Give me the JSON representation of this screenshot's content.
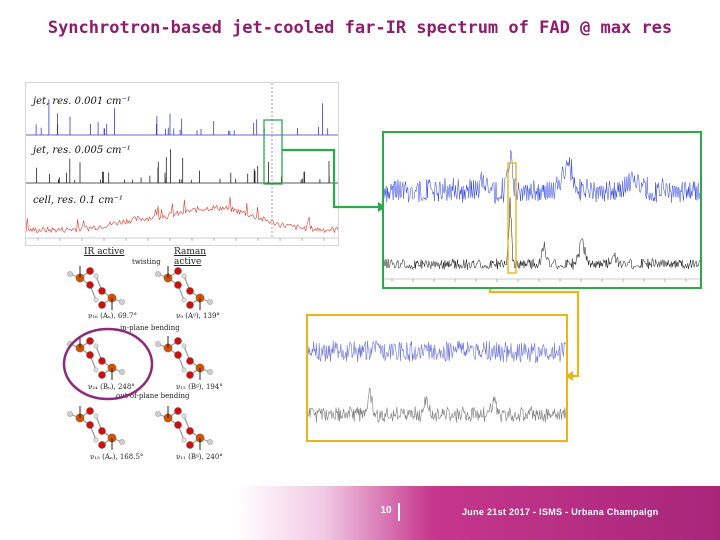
{
  "slide": {
    "title": "Synchrotron-based jet-cooled far-IR spectrum of FAD @ max res",
    "page_number": "10",
    "footer": "June 21st 2017 - ISMS - Urbana Champaign"
  },
  "spectra_panel": {
    "labels": [
      "jet, res. 0.001 cm⁻¹",
      "jet, res. 0.005 cm⁻¹",
      "cell, res. 0.1 cm⁻¹"
    ],
    "trace_colors": [
      "#3a3ac8",
      "#222222",
      "#e43a2a"
    ]
  },
  "molecules": {
    "headers": [
      "IR active",
      "Raman active"
    ],
    "section_labels": [
      "twisting",
      "in-plane bending",
      "out-of-plane bending"
    ],
    "captions": [
      "ν₁₆ (Aᵤ), 69.7°",
      "ν₉ (Aᵍ), 139°",
      "ν₂₄ (Bᵤ), 248°",
      "ν₁₂ (Bᵍ), 194°",
      "ν₁₅ (Aᵤ), 168.5°",
      "ν₁₁ (Bᵍ), 240°"
    ]
  },
  "insets": {
    "green_frame_color": "#2fa84a",
    "yellow_frame_color": "#e8b51c",
    "highlight_circle_color": "#8b2b7c"
  }
}
